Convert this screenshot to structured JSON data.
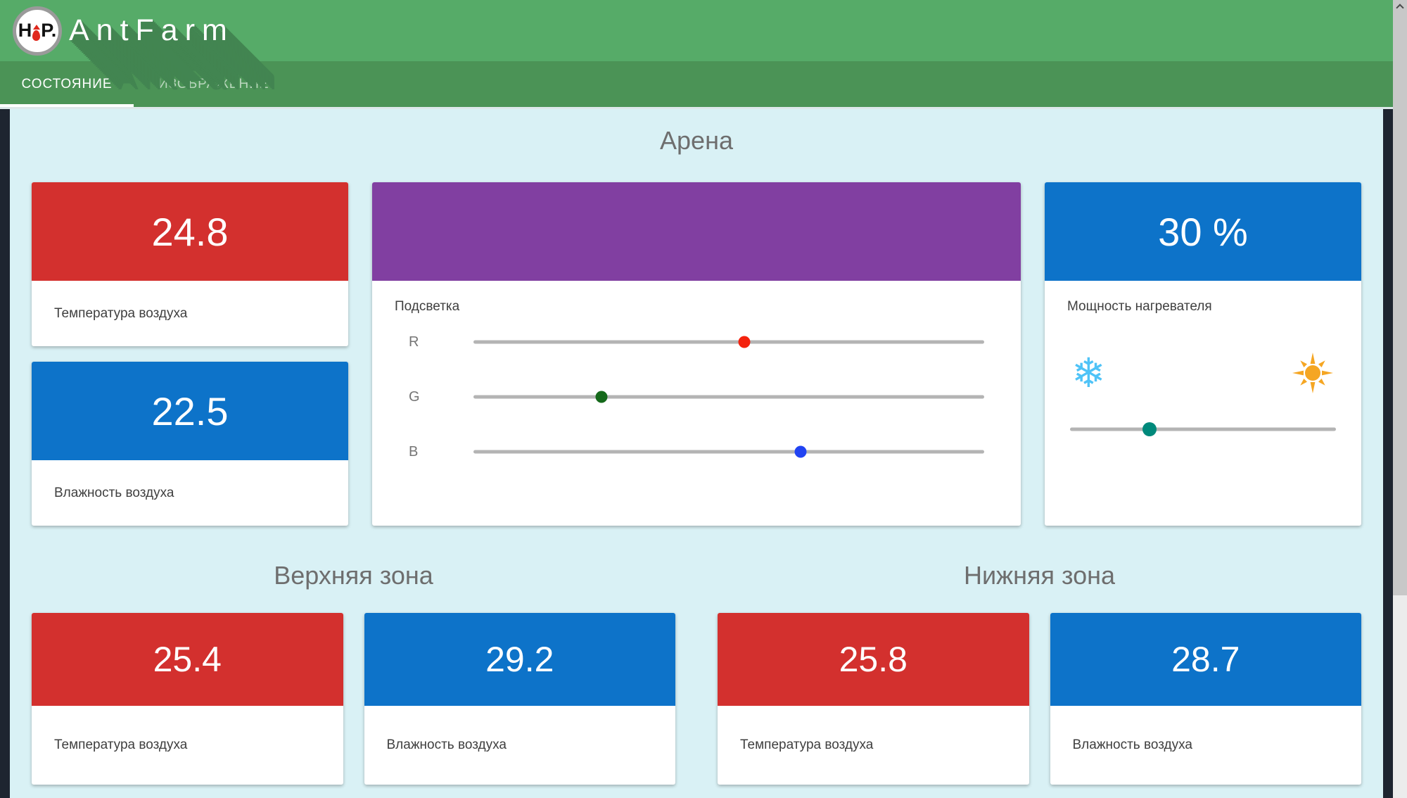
{
  "app": {
    "title": "AntFarm",
    "logo": {
      "left": "H",
      "right": "P."
    }
  },
  "tabs": [
    {
      "label": "СОСТОЯНИЕ",
      "active": true
    },
    {
      "label": "ИЗОБРАЖЕНИЕ",
      "active": false
    }
  ],
  "sections": {
    "arena": {
      "title": "Арена",
      "air_temp": {
        "value": "24.8",
        "label": "Температура воздуха"
      },
      "humidity": {
        "value": "22.5",
        "label": "Влажность воздуха"
      },
      "backlight": {
        "label": "Подсветка",
        "swatch_color": "#813fa1",
        "sliders": [
          {
            "label": "R",
            "percent": 53,
            "color": "#f4220e"
          },
          {
            "label": "G",
            "percent": 25,
            "color": "#15691b"
          },
          {
            "label": "B",
            "percent": 64,
            "color": "#2143f2"
          }
        ]
      },
      "heater": {
        "value": "30 %",
        "label": "Мощность нагревателя",
        "slider_percent": 30,
        "thumb_color": "#00897b",
        "cold_icon_glyph": "❄",
        "cold_icon_color": "#4fc3f7",
        "hot_icon_color": "#f5a623"
      }
    },
    "upper_zone": {
      "title": "Верхняя зона",
      "cards": [
        {
          "value": "25.4",
          "label": "Температура воздуха",
          "color": "#d3302e"
        },
        {
          "value": "29.2",
          "label": "Влажность воздуха",
          "color": "#0d73c9"
        }
      ]
    },
    "lower_zone": {
      "title": "Нижняя зона",
      "cards": [
        {
          "value": "25.8",
          "label": "Температура воздуха",
          "color": "#d3302e"
        },
        {
          "value": "28.7",
          "label": "Влажность воздуха",
          "color": "#0d73c9"
        }
      ]
    }
  },
  "colors": {
    "header_green": "#56ab68",
    "tabbar_green": "#4b9356",
    "title_shadow_green": "#428551",
    "content_bg": "#d9f1f5",
    "frame_dark": "#1e2530",
    "card_red": "#d3302e",
    "card_blue": "#0d73c9",
    "section_title_gray": "#6e6e6e",
    "slider_track_gray": "#b4b4b4"
  }
}
